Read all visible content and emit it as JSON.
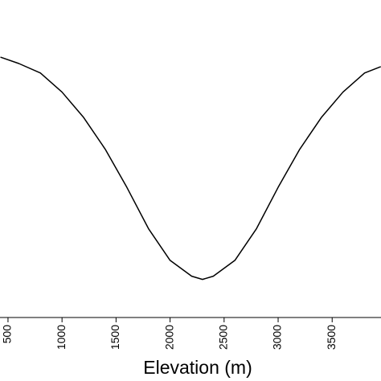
{
  "chart_data": {
    "type": "line",
    "x_label": "Elevation (m)",
    "x": [
      430,
      600,
      800,
      1000,
      1200,
      1400,
      1600,
      1800,
      2000,
      2200,
      2300,
      2400,
      2600,
      2800,
      3000,
      3200,
      3400,
      3600,
      3800,
      3950
    ],
    "values": [
      0.82,
      0.8,
      0.77,
      0.71,
      0.63,
      0.53,
      0.41,
      0.28,
      0.18,
      0.13,
      0.12,
      0.13,
      0.18,
      0.28,
      0.41,
      0.53,
      0.63,
      0.71,
      0.77,
      0.79
    ],
    "color": "#000000",
    "xlim": [
      426,
      3952
    ],
    "xticks": [
      500,
      1000,
      1500,
      2000,
      2500,
      3000,
      3500
    ],
    "ylim": [
      0,
      1
    ]
  }
}
